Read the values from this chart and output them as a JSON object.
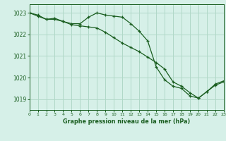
{
  "title": "Graphe pression niveau de la mer (hPa)",
  "bg_color": "#d6f0e8",
  "grid_color": "#b0d8c8",
  "line_color": "#1a5e20",
  "line1": [
    1023.0,
    1022.9,
    1022.7,
    1022.7,
    1022.6,
    1022.5,
    1022.5,
    1022.8,
    1023.0,
    1022.9,
    1022.85,
    1022.8,
    1022.5,
    1022.15,
    1021.7,
    1020.5,
    1019.9,
    1019.6,
    1019.5,
    1019.15,
    1019.05,
    1019.35,
    1019.65,
    1019.8
  ],
  "line2": [
    1023.0,
    1022.85,
    1022.7,
    1022.75,
    1022.6,
    1022.45,
    1022.4,
    1022.35,
    1022.3,
    1022.1,
    1021.85,
    1021.6,
    1021.4,
    1021.2,
    1020.95,
    1020.7,
    1020.4,
    1019.8,
    1019.6,
    1019.3,
    1019.05,
    1019.35,
    1019.7,
    1019.85
  ],
  "xlim": [
    0,
    23
  ],
  "ylim": [
    1018.5,
    1023.4
  ],
  "yticks": [
    1019,
    1020,
    1021,
    1022,
    1023
  ],
  "xticks": [
    0,
    1,
    2,
    3,
    4,
    5,
    6,
    7,
    8,
    9,
    10,
    11,
    12,
    13,
    14,
    15,
    16,
    17,
    18,
    19,
    20,
    21,
    22,
    23
  ],
  "figsize": [
    3.2,
    2.0
  ],
  "dpi": 100
}
